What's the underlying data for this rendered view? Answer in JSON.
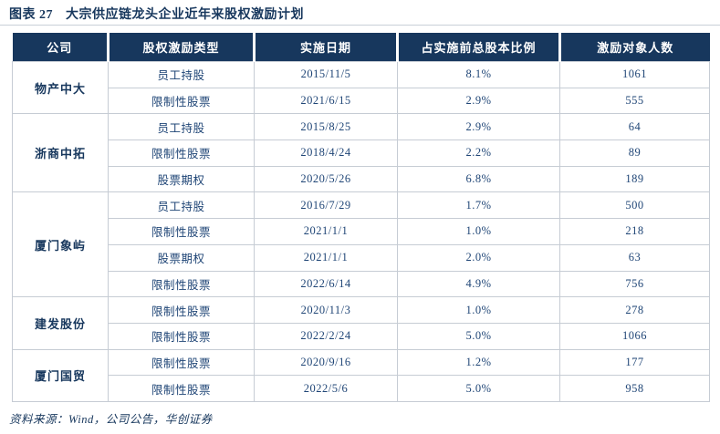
{
  "title": {
    "figure_label": "图表 27",
    "text": "大宗供应链龙头企业近年来股权激励计划"
  },
  "colors": {
    "header_bg": "#17375D",
    "title_text": "#17375D",
    "body_text": "#1f4576",
    "border": "#c6ccd4"
  },
  "table": {
    "columns": [
      "公司",
      "股权激励类型",
      "实施日期",
      "占实施前总股本比例",
      "激励对象人数"
    ],
    "groups": [
      {
        "company": "物产中大",
        "rows": [
          [
            "员工持股",
            "2015/11/5",
            "8.1%",
            "1061"
          ],
          [
            "限制性股票",
            "2021/6/15",
            "2.9%",
            "555"
          ]
        ]
      },
      {
        "company": "浙商中拓",
        "rows": [
          [
            "员工持股",
            "2015/8/25",
            "2.9%",
            "64"
          ],
          [
            "限制性股票",
            "2018/4/24",
            "2.2%",
            "89"
          ],
          [
            "股票期权",
            "2020/5/26",
            "6.8%",
            "189"
          ]
        ]
      },
      {
        "company": "厦门象屿",
        "rows": [
          [
            "员工持股",
            "2016/7/29",
            "1.7%",
            "500"
          ],
          [
            "限制性股票",
            "2021/1/1",
            "1.0%",
            "218"
          ],
          [
            "股票期权",
            "2021/1/1",
            "2.0%",
            "63"
          ],
          [
            "限制性股票",
            "2022/6/14",
            "4.9%",
            "756"
          ]
        ]
      },
      {
        "company": "建发股份",
        "rows": [
          [
            "限制性股票",
            "2020/11/3",
            "1.0%",
            "278"
          ],
          [
            "限制性股票",
            "2022/2/24",
            "5.0%",
            "1066"
          ]
        ]
      },
      {
        "company": "厦门国贸",
        "rows": [
          [
            "限制性股票",
            "2020/9/16",
            "1.2%",
            "177"
          ],
          [
            "限制性股票",
            "2022/5/6",
            "5.0%",
            "958"
          ]
        ]
      }
    ]
  },
  "footer": {
    "source": "资料来源：Wind，公司公告，华创证券"
  }
}
